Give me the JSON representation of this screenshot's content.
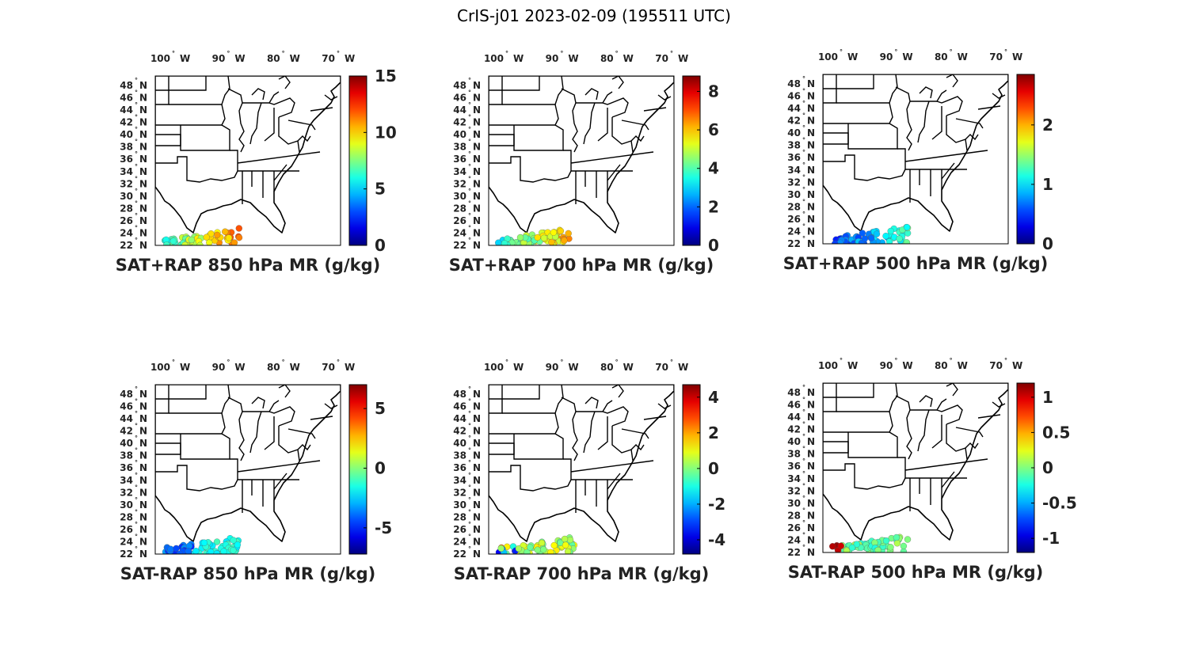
{
  "figure_title": "CrIS-j01 2023-02-09 (195511 UTC)",
  "lon_labels": [
    "100",
    "90",
    "80",
    "70"
  ],
  "lon_suffix": "W",
  "lat_labels": [
    "48",
    "46",
    "44",
    "42",
    "40",
    "38",
    "36",
    "34",
    "32",
    "30",
    "28",
    "26",
    "24",
    "22"
  ],
  "lat_suffix": "N",
  "colormap": "jet",
  "panels": [
    {
      "title": "SAT+RAP 850 hPa MR (g/kg)",
      "clim": [
        0,
        15
      ],
      "ticks": [
        {
          "v": 0,
          "t": "0"
        },
        {
          "v": 5,
          "t": "5"
        },
        {
          "v": 10,
          "t": "10"
        },
        {
          "v": 15,
          "t": "15"
        }
      ],
      "swath": "sum850"
    },
    {
      "title": "SAT+RAP 700 hPa MR (g/kg)",
      "clim": [
        0,
        8.8
      ],
      "ticks": [
        {
          "v": 0,
          "t": "0"
        },
        {
          "v": 2,
          "t": "2"
        },
        {
          "v": 4,
          "t": "4"
        },
        {
          "v": 6,
          "t": "6"
        },
        {
          "v": 8,
          "t": "8"
        }
      ],
      "swath": "sum700"
    },
    {
      "title": "SAT+RAP 500 hPa MR (g/kg)",
      "clim": [
        0,
        2.85
      ],
      "ticks": [
        {
          "v": 0,
          "t": "0"
        },
        {
          "v": 1,
          "t": "1"
        },
        {
          "v": 2,
          "t": "2"
        }
      ],
      "swath": "sum500"
    },
    {
      "title": "SAT-RAP 850 hPa MR (g/kg)",
      "clim": [
        -7.2,
        7
      ],
      "ticks": [
        {
          "v": -5,
          "t": "-5"
        },
        {
          "v": 0,
          "t": "0"
        },
        {
          "v": 5,
          "t": "5"
        }
      ],
      "swath": "dif850"
    },
    {
      "title": "SAT-RAP 700 hPa MR (g/kg)",
      "clim": [
        -4.8,
        4.7
      ],
      "ticks": [
        {
          "v": -4,
          "t": "-4"
        },
        {
          "v": -2,
          "t": "-2"
        },
        {
          "v": 0,
          "t": "0"
        },
        {
          "v": 2,
          "t": "2"
        },
        {
          "v": 4,
          "t": "4"
        }
      ],
      "swath": "dif700"
    },
    {
      "title": "SAT-RAP 500 hPa MR (g/kg)",
      "clim": [
        -1.2,
        1.2
      ],
      "ticks": [
        {
          "v": -1,
          "t": "-1"
        },
        {
          "v": -0.5,
          "t": "-0.5"
        },
        {
          "v": 0,
          "t": "0"
        },
        {
          "v": 0.5,
          "t": "0.5"
        },
        {
          "v": 1,
          "t": "1"
        }
      ],
      "swath": "dif500"
    }
  ]
}
